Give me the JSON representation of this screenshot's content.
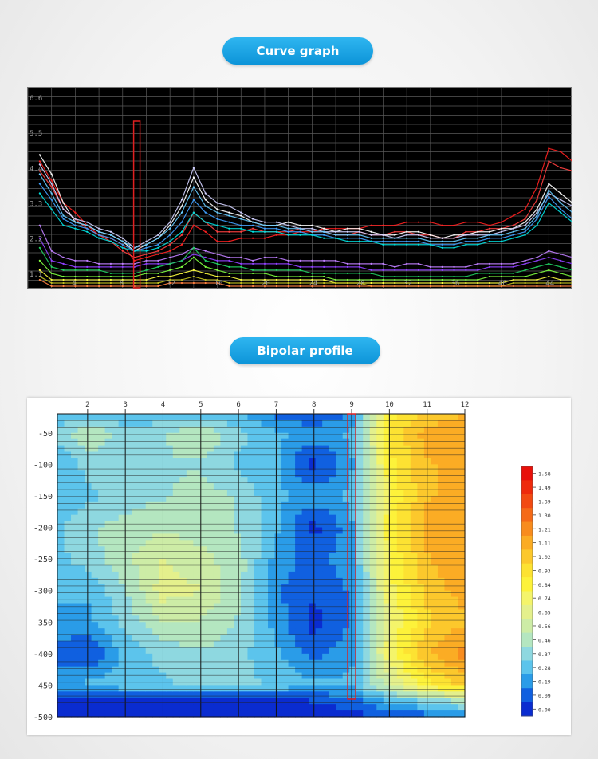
{
  "sections": {
    "curve_title": "Curve graph",
    "profile_title": "Bipolar profile"
  },
  "chart_data": [
    {
      "type": "line",
      "title": "Curve graph",
      "background": "#000000",
      "grid": true,
      "x": [
        1,
        2,
        3,
        4,
        5,
        6,
        7,
        8,
        9,
        10,
        11,
        12,
        13,
        14,
        15,
        16,
        17,
        18,
        19,
        20,
        21,
        22,
        23,
        24,
        25,
        26,
        27,
        28,
        29,
        30,
        31,
        32,
        33,
        34,
        35,
        36,
        37,
        38,
        39,
        40,
        41,
        42,
        43,
        44,
        45,
        46
      ],
      "xlim": [
        0,
        46
      ],
      "ylim": [
        0.6,
        6.9
      ],
      "x_ticks": [
        "4",
        "8",
        "12",
        "16",
        "20",
        "24",
        "28",
        "32",
        "36",
        "40",
        "44"
      ],
      "x_tick_values": [
        4,
        8,
        12,
        16,
        20,
        24,
        28,
        32,
        36,
        40,
        44
      ],
      "y_ticks": [
        "1.1",
        "2.2",
        "3.3",
        "4.4",
        "5.5",
        "6.6"
      ],
      "y_tick_values": [
        1.1,
        2.2,
        3.3,
        4.4,
        5.5,
        6.6
      ],
      "highlight_x": 9.2,
      "highlight_color": "#e02020",
      "series_colors": [
        "#ff2020",
        "#ff4040",
        "#ffffff",
        "#d0d0ff",
        "#66ccff",
        "#40a0ff",
        "#00e0e0",
        "#c080ff",
        "#9040ff",
        "#20d060",
        "#80ff40",
        "#ffff40",
        "#c0c020",
        "#ff8040"
      ],
      "series": [
        {
          "values": [
            4.6,
            4.0,
            3.3,
            3.0,
            2.6,
            2.3,
            2.2,
            2.0,
            1.5,
            1.6,
            1.7,
            1.8,
            2.0,
            2.6,
            2.4,
            2.1,
            2.1,
            2.2,
            2.2,
            2.2,
            2.3,
            2.3,
            2.4,
            2.4,
            2.5,
            2.5,
            2.5,
            2.5,
            2.6,
            2.6,
            2.6,
            2.7,
            2.7,
            2.7,
            2.6,
            2.6,
            2.7,
            2.7,
            2.6,
            2.7,
            2.9,
            3.1,
            3.8,
            5.0,
            4.9,
            4.6
          ]
        },
        {
          "values": [
            4.3,
            3.8,
            3.1,
            2.8,
            2.5,
            2.3,
            2.1,
            1.8,
            1.6,
            1.7,
            1.8,
            2.0,
            2.3,
            3.0,
            2.7,
            2.4,
            2.4,
            2.4,
            2.5,
            2.4,
            2.4,
            2.4,
            2.5,
            2.4,
            2.4,
            2.3,
            2.3,
            2.4,
            2.3,
            2.3,
            2.4,
            2.4,
            2.3,
            2.3,
            2.2,
            2.2,
            2.4,
            2.4,
            2.5,
            2.5,
            2.6,
            2.8,
            3.4,
            4.6,
            4.4,
            4.3
          ]
        },
        {
          "values": [
            4.8,
            4.2,
            3.3,
            2.7,
            2.6,
            2.4,
            2.3,
            2.1,
            1.8,
            2.0,
            2.2,
            2.6,
            3.2,
            4.1,
            3.4,
            3.1,
            3.0,
            2.9,
            2.7,
            2.6,
            2.6,
            2.7,
            2.6,
            2.6,
            2.5,
            2.4,
            2.5,
            2.5,
            2.4,
            2.3,
            2.3,
            2.4,
            2.4,
            2.3,
            2.2,
            2.3,
            2.3,
            2.4,
            2.4,
            2.5,
            2.5,
            2.7,
            3.1,
            3.9,
            3.6,
            3.3
          ]
        },
        {
          "values": [
            4.5,
            3.9,
            3.1,
            2.8,
            2.7,
            2.5,
            2.4,
            2.2,
            1.9,
            2.1,
            2.3,
            2.7,
            3.4,
            4.4,
            3.6,
            3.3,
            3.2,
            3.0,
            2.8,
            2.7,
            2.7,
            2.6,
            2.5,
            2.5,
            2.4,
            2.4,
            2.4,
            2.4,
            2.3,
            2.3,
            2.2,
            2.3,
            2.3,
            2.2,
            2.2,
            2.2,
            2.3,
            2.3,
            2.3,
            2.4,
            2.5,
            2.6,
            3.0,
            3.6,
            3.4,
            3.2
          ]
        },
        {
          "values": [
            4.2,
            3.6,
            2.9,
            2.7,
            2.6,
            2.4,
            2.3,
            2.1,
            1.9,
            2.0,
            2.2,
            2.5,
            3.0,
            3.8,
            3.2,
            3.0,
            2.9,
            2.8,
            2.7,
            2.6,
            2.6,
            2.5,
            2.5,
            2.4,
            2.4,
            2.3,
            2.3,
            2.3,
            2.2,
            2.2,
            2.2,
            2.2,
            2.2,
            2.1,
            2.1,
            2.1,
            2.2,
            2.2,
            2.3,
            2.3,
            2.4,
            2.5,
            2.9,
            3.7,
            3.3,
            3.0
          ]
        },
        {
          "values": [
            3.9,
            3.4,
            2.8,
            2.6,
            2.5,
            2.3,
            2.2,
            2.0,
            1.8,
            1.9,
            2.0,
            2.3,
            2.7,
            3.4,
            3.0,
            2.8,
            2.7,
            2.6,
            2.6,
            2.5,
            2.5,
            2.4,
            2.4,
            2.3,
            2.3,
            2.2,
            2.2,
            2.2,
            2.1,
            2.1,
            2.1,
            2.1,
            2.1,
            2.0,
            2.0,
            2.0,
            2.1,
            2.1,
            2.2,
            2.2,
            2.3,
            2.4,
            2.8,
            3.5,
            3.1,
            2.8
          ]
        },
        {
          "values": [
            3.6,
            3.1,
            2.6,
            2.5,
            2.4,
            2.2,
            2.1,
            1.9,
            1.8,
            1.8,
            1.9,
            2.1,
            2.4,
            3.0,
            2.7,
            2.6,
            2.5,
            2.5,
            2.4,
            2.4,
            2.4,
            2.3,
            2.3,
            2.3,
            2.2,
            2.2,
            2.1,
            2.1,
            2.1,
            2.0,
            2.0,
            2.0,
            2.0,
            2.0,
            1.9,
            1.9,
            2.0,
            2.0,
            2.1,
            2.1,
            2.2,
            2.3,
            2.6,
            3.3,
            3.0,
            2.7
          ]
        },
        {
          "values": [
            2.6,
            1.8,
            1.6,
            1.5,
            1.5,
            1.4,
            1.4,
            1.4,
            1.4,
            1.5,
            1.5,
            1.6,
            1.7,
            1.9,
            1.8,
            1.7,
            1.6,
            1.6,
            1.5,
            1.6,
            1.6,
            1.5,
            1.5,
            1.5,
            1.5,
            1.5,
            1.4,
            1.4,
            1.4,
            1.4,
            1.3,
            1.4,
            1.4,
            1.3,
            1.3,
            1.3,
            1.3,
            1.4,
            1.4,
            1.4,
            1.4,
            1.5,
            1.6,
            1.8,
            1.7,
            1.6
          ]
        },
        {
          "values": [
            2.2,
            1.5,
            1.4,
            1.3,
            1.3,
            1.3,
            1.3,
            1.3,
            1.3,
            1.4,
            1.4,
            1.4,
            1.5,
            1.7,
            1.6,
            1.5,
            1.5,
            1.4,
            1.4,
            1.4,
            1.4,
            1.4,
            1.3,
            1.3,
            1.3,
            1.3,
            1.3,
            1.3,
            1.2,
            1.2,
            1.2,
            1.2,
            1.2,
            1.2,
            1.2,
            1.2,
            1.2,
            1.2,
            1.3,
            1.3,
            1.3,
            1.4,
            1.5,
            1.6,
            1.5,
            1.4
          ]
        },
        {
          "values": [
            1.9,
            1.3,
            1.2,
            1.2,
            1.2,
            1.2,
            1.1,
            1.1,
            1.1,
            1.2,
            1.3,
            1.4,
            1.5,
            1.9,
            1.5,
            1.4,
            1.3,
            1.3,
            1.2,
            1.2,
            1.2,
            1.2,
            1.2,
            1.1,
            1.1,
            1.1,
            1.1,
            1.1,
            1.1,
            1.0,
            1.0,
            1.0,
            1.0,
            1.0,
            1.0,
            1.0,
            1.0,
            1.1,
            1.1,
            1.1,
            1.1,
            1.2,
            1.3,
            1.4,
            1.3,
            1.2
          ]
        },
        {
          "values": [
            1.5,
            1.1,
            1.0,
            1.0,
            1.0,
            1.0,
            1.0,
            1.0,
            1.0,
            1.1,
            1.1,
            1.2,
            1.3,
            1.6,
            1.3,
            1.2,
            1.1,
            1.1,
            1.1,
            1.1,
            1.0,
            1.0,
            1.0,
            1.0,
            1.0,
            0.9,
            0.9,
            0.9,
            0.9,
            0.9,
            0.9,
            0.9,
            0.9,
            0.9,
            0.9,
            0.9,
            0.9,
            0.9,
            1.0,
            1.0,
            1.0,
            1.0,
            1.1,
            1.2,
            1.1,
            1.0
          ]
        },
        {
          "values": [
            1.2,
            0.9,
            0.9,
            0.9,
            0.9,
            0.9,
            0.9,
            0.9,
            0.9,
            0.9,
            1.0,
            1.0,
            1.1,
            1.2,
            1.1,
            1.0,
            1.0,
            0.9,
            0.9,
            0.9,
            0.9,
            0.9,
            0.9,
            0.9,
            0.9,
            0.8,
            0.8,
            0.8,
            0.8,
            0.8,
            0.8,
            0.8,
            0.8,
            0.8,
            0.8,
            0.8,
            0.8,
            0.8,
            0.8,
            0.8,
            0.9,
            0.9,
            0.9,
            1.0,
            0.9,
            0.9
          ]
        },
        {
          "values": [
            1.0,
            0.8,
            0.8,
            0.8,
            0.8,
            0.8,
            0.8,
            0.8,
            0.8,
            0.8,
            0.8,
            0.9,
            0.9,
            1.0,
            0.9,
            0.9,
            0.8,
            0.8,
            0.8,
            0.8,
            0.8,
            0.8,
            0.8,
            0.8,
            0.8,
            0.8,
            0.8,
            0.8,
            0.7,
            0.7,
            0.7,
            0.7,
            0.7,
            0.7,
            0.7,
            0.7,
            0.7,
            0.7,
            0.7,
            0.7,
            0.8,
            0.8,
            0.8,
            0.8,
            0.8,
            0.8
          ]
        },
        {
          "values": [
            0.9,
            0.7,
            0.7,
            0.7,
            0.7,
            0.7,
            0.7,
            0.7,
            0.7,
            0.7,
            0.7,
            0.8,
            0.8,
            0.8,
            0.8,
            0.8,
            0.7,
            0.7,
            0.7,
            0.7,
            0.7,
            0.7,
            0.7,
            0.7,
            0.7,
            0.7,
            0.7,
            0.7,
            0.7,
            0.7,
            0.7,
            0.7,
            0.7,
            0.7,
            0.7,
            0.7,
            0.7,
            0.7,
            0.7,
            0.7,
            0.7,
            0.7,
            0.7,
            0.7,
            0.7,
            0.7
          ]
        }
      ]
    },
    {
      "type": "heatmap",
      "title": "Bipolar profile",
      "x_ticks": [
        "2",
        "3",
        "4",
        "5",
        "6",
        "7",
        "8",
        "9",
        "10",
        "11",
        "12"
      ],
      "x_tick_values": [
        2,
        3,
        4,
        5,
        6,
        7,
        8,
        9,
        10,
        11,
        12
      ],
      "xlim": [
        1.2,
        12
      ],
      "y_ticks": [
        "-50",
        "-100",
        "-150",
        "-200",
        "-250",
        "-300",
        "-350",
        "-400",
        "-450",
        "-500"
      ],
      "y_tick_values": [
        -50,
        -100,
        -150,
        -200,
        -250,
        -300,
        -350,
        -400,
        -450,
        -500
      ],
      "ylim": [
        -500,
        -20
      ],
      "highlight_x": 9.0,
      "highlight_color": "#e02020",
      "x": [
        1.2,
        2,
        3,
        4,
        5,
        6,
        7,
        8,
        9,
        10,
        11,
        12
      ],
      "y": [
        -20,
        -50,
        -100,
        -150,
        -200,
        -250,
        -300,
        -350,
        -400,
        -450,
        -475,
        -500
      ],
      "z": [
        [
          0.3,
          0.3,
          0.3,
          0.3,
          0.3,
          0.28,
          0.15,
          0.1,
          0.2,
          0.9,
          1.05,
          1.1
        ],
        [
          0.4,
          0.55,
          0.4,
          0.45,
          0.55,
          0.4,
          0.3,
          0.25,
          0.3,
          0.95,
          1.15,
          1.2
        ],
        [
          0.3,
          0.4,
          0.4,
          0.45,
          0.45,
          0.35,
          0.3,
          0.05,
          0.25,
          0.9,
          1.1,
          1.15
        ],
        [
          0.3,
          0.35,
          0.4,
          0.45,
          0.5,
          0.45,
          0.3,
          0.25,
          0.3,
          0.85,
          1.1,
          1.15
        ],
        [
          0.35,
          0.45,
          0.5,
          0.55,
          0.5,
          0.45,
          0.3,
          0.05,
          0.25,
          0.9,
          1.15,
          1.2
        ],
        [
          0.35,
          0.4,
          0.55,
          0.65,
          0.6,
          0.5,
          0.25,
          0.15,
          0.25,
          0.85,
          1.1,
          1.2
        ],
        [
          0.3,
          0.3,
          0.45,
          0.7,
          0.65,
          0.5,
          0.2,
          0.1,
          0.2,
          0.8,
          1.05,
          1.15
        ],
        [
          0.25,
          0.25,
          0.4,
          0.55,
          0.55,
          0.45,
          0.25,
          0.05,
          0.2,
          0.75,
          1.0,
          1.1
        ],
        [
          0.15,
          0.1,
          0.3,
          0.4,
          0.45,
          0.4,
          0.3,
          0.15,
          0.25,
          0.8,
          1.1,
          1.25
        ],
        [
          0.25,
          0.3,
          0.35,
          0.35,
          0.4,
          0.4,
          0.35,
          0.3,
          0.3,
          0.6,
          0.9,
          1.05
        ],
        [
          0.02,
          0.02,
          0.02,
          0.02,
          0.02,
          0.02,
          0.05,
          0.1,
          0.15,
          0.3,
          0.4,
          0.5
        ],
        [
          0.0,
          0.0,
          0.0,
          0.0,
          0.0,
          0.0,
          0.0,
          0.0,
          0.05,
          0.1,
          0.15,
          0.2
        ]
      ],
      "legend_levels": [
        "1.58",
        "1.49",
        "1.39",
        "1.30",
        "1.21",
        "1.11",
        "1.02",
        "0.93",
        "0.84",
        "0.74",
        "0.65",
        "0.56",
        "0.46",
        "0.37",
        "0.28",
        "0.19",
        "0.09",
        "0.00"
      ],
      "legend_values": [
        1.58,
        1.49,
        1.39,
        1.3,
        1.21,
        1.11,
        1.02,
        0.93,
        0.84,
        0.74,
        0.65,
        0.56,
        0.46,
        0.37,
        0.28,
        0.19,
        0.09,
        0.0
      ],
      "legend_colors": [
        "#e8100a",
        "#ee2a0c",
        "#f24a12",
        "#f56a18",
        "#f88c1e",
        "#fbac24",
        "#fcc82c",
        "#fde232",
        "#fdf23a",
        "#f4f46a",
        "#e4f08c",
        "#cdeca6",
        "#b4e6c0",
        "#8ed8e0",
        "#5cc4ec",
        "#2a9ce8",
        "#1060e0",
        "#0a2cd0"
      ],
      "legend_placement": "right"
    }
  ]
}
